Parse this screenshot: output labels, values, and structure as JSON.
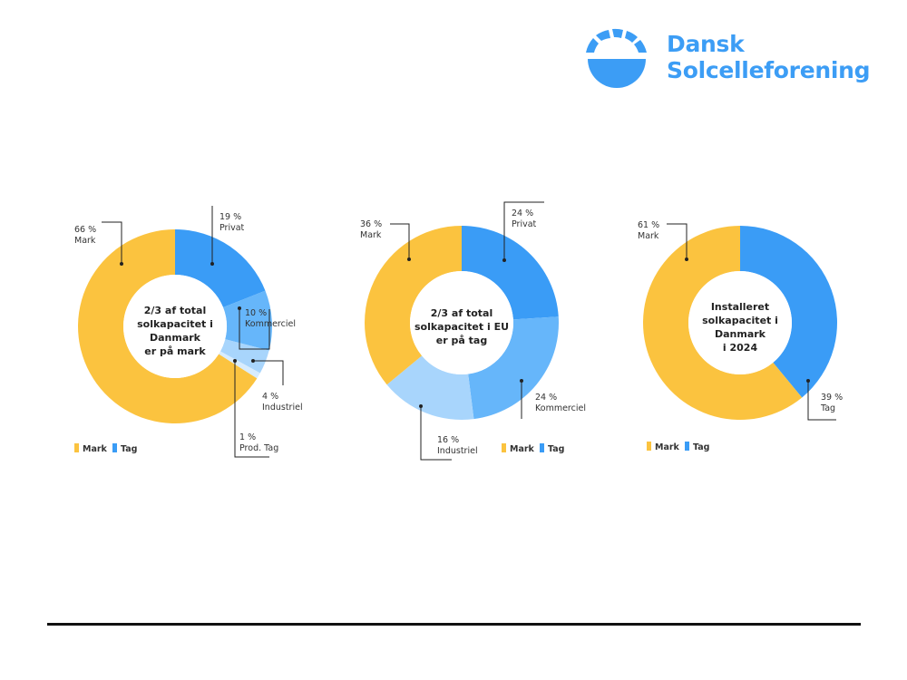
{
  "logo": {
    "line1": "Dansk",
    "line2": "Solcelleforening"
  },
  "colors": {
    "mark": "#fbc33f",
    "privat": "#3a9cf6",
    "kommerciel": "#66b6fa",
    "industriel": "#a8d5fc",
    "prod_tag": "#d7ecfe",
    "tag_legend": "#3a9cf6",
    "brand": "#3c9df5",
    "leader": "#222222"
  },
  "chart_data": [
    {
      "type": "pie",
      "id": "dk-share",
      "center_lines": [
        "2/3 af total",
        "solkapacitet i",
        "Danmark",
        "er på mark"
      ],
      "slices": [
        {
          "key": "privat",
          "pct": "19 %",
          "name": "Privat",
          "value": 19,
          "color_key": "privat"
        },
        {
          "key": "kommerciel",
          "pct": "10 %",
          "name": "Kommerciel",
          "value": 10,
          "color_key": "kommerciel"
        },
        {
          "key": "industriel",
          "pct": "4 %",
          "name": "Industriel",
          "value": 4,
          "color_key": "industriel"
        },
        {
          "key": "prod-tag",
          "pct": "1 %",
          "name": "Prod. Tag",
          "value": 1,
          "color_key": "prod_tag"
        },
        {
          "key": "mark",
          "pct": "66 %",
          "name": "Mark",
          "value": 66,
          "color_key": "mark"
        }
      ],
      "legend": [
        {
          "label": "Mark",
          "color_key": "mark"
        },
        {
          "label": "Tag",
          "color_key": "tag_legend"
        }
      ]
    },
    {
      "type": "pie",
      "id": "eu-share",
      "center_lines": [
        "2/3 af total",
        "solkapacitet i EU",
        "er på tag"
      ],
      "slices": [
        {
          "key": "privat",
          "pct": "24 %",
          "name": "Privat",
          "value": 24,
          "color_key": "privat"
        },
        {
          "key": "kommerciel",
          "pct": "24 %",
          "name": "Kommerciel",
          "value": 24,
          "color_key": "kommerciel"
        },
        {
          "key": "industriel",
          "pct": "16 %",
          "name": "Industriel",
          "value": 16,
          "color_key": "industriel"
        },
        {
          "key": "mark",
          "pct": "36 %",
          "name": "Mark",
          "value": 36,
          "color_key": "mark"
        }
      ],
      "legend": [
        {
          "label": "Mark",
          "color_key": "mark"
        },
        {
          "label": "Tag",
          "color_key": "tag_legend"
        }
      ]
    },
    {
      "type": "pie",
      "id": "dk-2024",
      "center_lines": [
        "Installeret",
        "solkapacitet i",
        "Danmark",
        "i 2024"
      ],
      "slices": [
        {
          "key": "tag",
          "pct": "39 %",
          "name": "Tag",
          "value": 39,
          "color_key": "privat"
        },
        {
          "key": "mark",
          "pct": "61 %",
          "name": "Mark",
          "value": 61,
          "color_key": "mark"
        }
      ],
      "legend": [
        {
          "label": "Mark",
          "color_key": "mark"
        },
        {
          "label": "Tag",
          "color_key": "tag_legend"
        }
      ]
    }
  ]
}
